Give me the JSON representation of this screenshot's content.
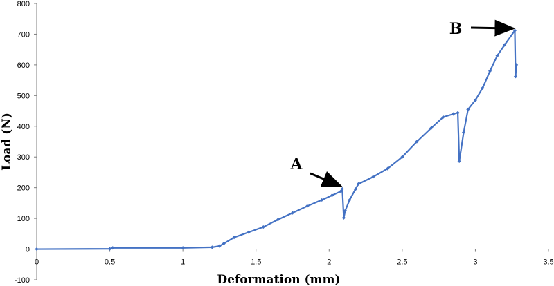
{
  "chart_data": {
    "type": "line",
    "xlabel": "Deformation (mm)",
    "ylabel": "Load (N)",
    "xlim": [
      0,
      3.5
    ],
    "ylim": [
      -100,
      800
    ],
    "x_ticks": [
      "0",
      "0.5",
      "1",
      "1.5",
      "2",
      "2.5",
      "3",
      "3.5"
    ],
    "y_ticks": [
      "-100",
      "0",
      "100",
      "200",
      "300",
      "400",
      "500",
      "600",
      "700",
      "800"
    ],
    "grid": false,
    "marker": "diamond",
    "line_color": "#4472C4",
    "series": [
      {
        "points": [
          [
            0,
            0
          ],
          [
            0.5,
            1
          ],
          [
            0.52,
            4
          ],
          [
            1.0,
            4
          ],
          [
            1.2,
            6
          ],
          [
            1.25,
            10
          ],
          [
            1.28,
            18
          ],
          [
            1.35,
            38
          ],
          [
            1.45,
            55
          ],
          [
            1.55,
            72
          ],
          [
            1.65,
            96
          ],
          [
            1.75,
            118
          ],
          [
            1.85,
            140
          ],
          [
            1.95,
            160
          ],
          [
            2.02,
            175
          ],
          [
            2.08,
            188
          ],
          [
            2.09,
            196
          ],
          [
            2.1,
            102
          ],
          [
            2.11,
            125
          ],
          [
            2.14,
            160
          ],
          [
            2.18,
            195
          ],
          [
            2.2,
            212
          ],
          [
            2.3,
            235
          ],
          [
            2.4,
            262
          ],
          [
            2.5,
            300
          ],
          [
            2.6,
            350
          ],
          [
            2.7,
            395
          ],
          [
            2.78,
            430
          ],
          [
            2.85,
            440
          ],
          [
            2.88,
            444
          ],
          [
            2.89,
            286
          ],
          [
            2.92,
            380
          ],
          [
            2.95,
            455
          ],
          [
            3.0,
            485
          ],
          [
            3.05,
            525
          ],
          [
            3.1,
            580
          ],
          [
            3.15,
            630
          ],
          [
            3.2,
            665
          ],
          [
            3.27,
            712
          ],
          [
            3.275,
            562
          ],
          [
            3.28,
            600
          ]
        ]
      }
    ],
    "annotations": [
      {
        "label": "A",
        "x": 2.09,
        "y": 196
      },
      {
        "label": "B",
        "x": 3.27,
        "y": 712
      }
    ]
  }
}
